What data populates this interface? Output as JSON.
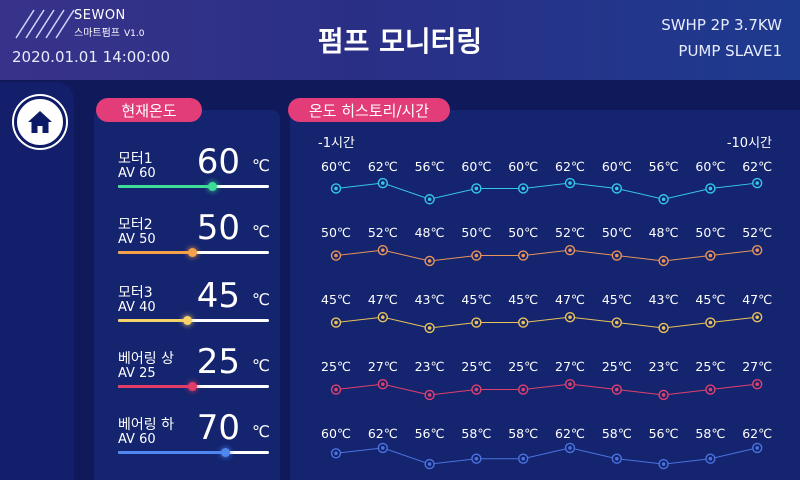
{
  "header": {
    "brand": "SEWON",
    "brand_sub": "스마트펌프",
    "version": "V1.0",
    "datetime": "2020.01.01 14:00:00",
    "title": "펌프 모니터링",
    "device_line1": "SWHP  2P 3.7KW",
    "device_line2": "PUMP SLAVE1"
  },
  "nav": {
    "home_icon": "home-icon"
  },
  "current": {
    "title": "현재온도",
    "unit": "℃",
    "sensors": [
      {
        "name": "모터1",
        "av": "AV 60",
        "value": "60",
        "level": 0.62,
        "color": "#3ddc97"
      },
      {
        "name": "모터2",
        "av": "AV 50",
        "value": "50",
        "level": 0.49,
        "color": "#f6a14a"
      },
      {
        "name": "모터3",
        "av": "AV 40",
        "value": "45",
        "level": 0.46,
        "color": "#f6d36a"
      },
      {
        "name": "베어링 상",
        "av": "AV 25",
        "value": "25",
        "level": 0.49,
        "color": "#e23d67"
      },
      {
        "name": "베어링 하",
        "av": "AV 60",
        "value": "70",
        "level": 0.71,
        "color": "#4f86f0"
      }
    ]
  },
  "history": {
    "title": "온도 히스토리/시간",
    "label_start": "-1시간",
    "label_end": "-10시간",
    "series": [
      {
        "color": "#35c7e6",
        "labels": [
          "60℃",
          "62℃",
          "56℃",
          "60℃",
          "60℃",
          "62℃",
          "60℃",
          "56℃",
          "60℃",
          "62℃"
        ],
        "values": [
          60,
          62,
          56,
          60,
          60,
          62,
          60,
          56,
          60,
          62
        ]
      },
      {
        "color": "#e8935a",
        "labels": [
          "50℃",
          "52℃",
          "48℃",
          "50℃",
          "50℃",
          "52℃",
          "50℃",
          "48℃",
          "50℃",
          "52℃"
        ],
        "values": [
          50,
          52,
          48,
          50,
          50,
          52,
          50,
          48,
          50,
          52
        ]
      },
      {
        "color": "#e9c25a",
        "labels": [
          "45℃",
          "47℃",
          "43℃",
          "45℃",
          "45℃",
          "47℃",
          "45℃",
          "43℃",
          "45℃",
          "47℃"
        ],
        "values": [
          45,
          47,
          43,
          45,
          45,
          47,
          45,
          43,
          45,
          47
        ]
      },
      {
        "color": "#e0416c",
        "labels": [
          "25℃",
          "27℃",
          "23℃",
          "25℃",
          "25℃",
          "27℃",
          "25℃",
          "23℃",
          "25℃",
          "27℃"
        ],
        "values": [
          25,
          27,
          23,
          25,
          25,
          27,
          25,
          23,
          25,
          27
        ]
      },
      {
        "color": "#4a73e0",
        "labels": [
          "60℃",
          "62℃",
          "56℃",
          "58℃",
          "58℃",
          "62℃",
          "58℃",
          "56℃",
          "58℃",
          "62℃"
        ],
        "values": [
          60,
          62,
          56,
          58,
          58,
          62,
          58,
          56,
          58,
          62
        ]
      }
    ]
  }
}
